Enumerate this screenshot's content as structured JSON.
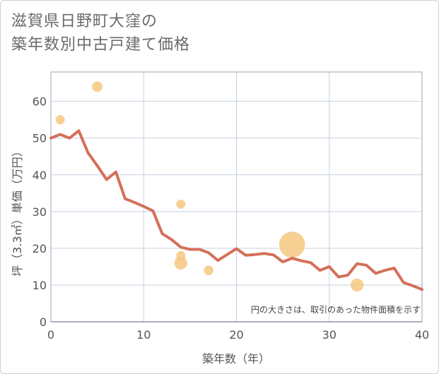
{
  "title_lines": [
    "滋賀県日野町大窪の",
    "築年数別中古戸建て価格"
  ],
  "chart_data": {
    "type": "line+scatter",
    "xlabel": "築年数（年）",
    "ylabel": "坪（3.3㎡）単価（万円）",
    "xlim": [
      0,
      40
    ],
    "ylim": [
      0,
      68
    ],
    "xticks": [
      0,
      10,
      20,
      30,
      40
    ],
    "yticks": [
      0,
      10,
      20,
      30,
      40,
      50,
      60
    ],
    "grid": true,
    "note": "円の大きさは、取引のあった物件面積を示す",
    "colors": {
      "line": "#d4705a",
      "bubble": "#f5c880",
      "grid": "#c5d2e0",
      "axis": "#99a6b5"
    },
    "line_series": {
      "x": [
        0,
        1,
        2,
        3,
        4,
        5,
        6,
        7,
        8,
        9,
        10,
        11,
        12,
        13,
        14,
        15,
        16,
        17,
        18,
        19,
        20,
        21,
        22,
        23,
        24,
        25,
        26,
        27,
        28,
        29,
        30,
        31,
        32,
        33,
        34,
        35,
        36,
        37,
        38,
        39,
        40
      ],
      "y": [
        50,
        51,
        50,
        52,
        46,
        42.5,
        38.7,
        40.8,
        33.5,
        32.5,
        31.4,
        30.2,
        24,
        22.4,
        20.3,
        19.7,
        19.7,
        18.8,
        16.7,
        18.3,
        19.9,
        18.1,
        18.3,
        18.6,
        18.2,
        16.3,
        17.3,
        16.6,
        16.1,
        14,
        15,
        12.2,
        12.7,
        15.8,
        15.4,
        13.2,
        14,
        14.6,
        10.7,
        9.8,
        8.8
      ]
    },
    "bubbles": [
      {
        "x": 1,
        "y": 55,
        "size": 1
      },
      {
        "x": 5,
        "y": 64,
        "size": 1.3
      },
      {
        "x": 14,
        "y": 32,
        "size": 1
      },
      {
        "x": 14,
        "y": 18,
        "size": 1
      },
      {
        "x": 14,
        "y": 16,
        "size": 2
      },
      {
        "x": 17,
        "y": 14,
        "size": 1.1
      },
      {
        "x": 26,
        "y": 21,
        "size": 8
      },
      {
        "x": 33,
        "y": 10,
        "size": 2
      }
    ]
  }
}
